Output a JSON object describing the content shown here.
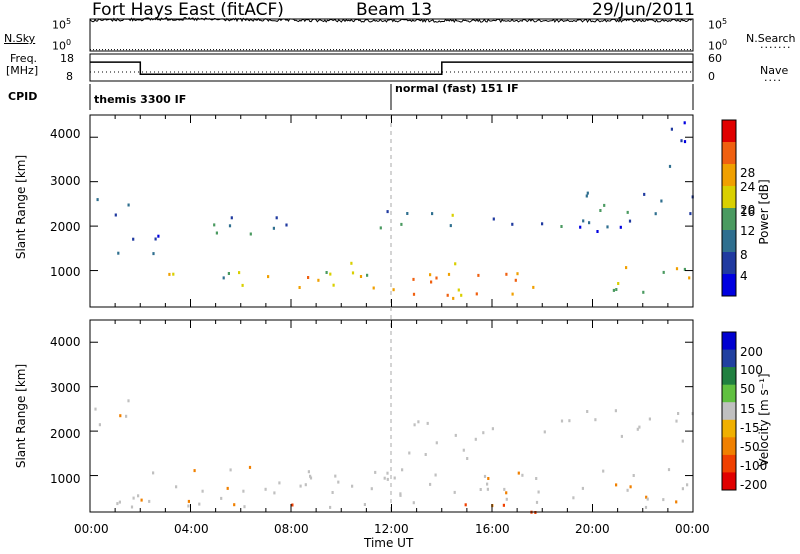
{
  "header": {
    "radar": "Fort Hays East (fitACF)",
    "beam": "Beam 13",
    "date": "29/Jun/2011"
  },
  "panels": {
    "nsky": {
      "left_label": "N.Sky",
      "right_label": "N.Search",
      "left_ticks": [
        "10^5",
        "10^0"
      ],
      "right_ticks": [
        "10^5",
        "10^0"
      ]
    },
    "freq": {
      "left_label_1": "Freq.",
      "left_label_2": "[MHz]",
      "right_label": "Nave",
      "left_ticks": [
        "18",
        "8"
      ],
      "right_ticks": [
        "60",
        "0"
      ]
    },
    "cpid": {
      "label": "CPID",
      "segments": [
        "themis 3300 IF",
        "normal (fast) 151 IF"
      ]
    },
    "power": {
      "ylabel": "Slant Range [km]",
      "yticks": [
        "4000",
        "3000",
        "2000",
        "1000"
      ],
      "colorbar_label": "Power [dB]",
      "colorbar_ticks": [
        "28",
        "24",
        "20",
        "16",
        "12",
        "8",
        "4"
      ]
    },
    "velocity": {
      "ylabel": "Slant Range [km]",
      "yticks": [
        "4000",
        "3000",
        "2000",
        "1000"
      ],
      "colorbar_label": "Velocity [m s⁻¹]",
      "colorbar_ticks": [
        "200",
        "100",
        "50",
        "15",
        "-15",
        "-50",
        "-100",
        "-200"
      ]
    }
  },
  "xaxis": {
    "label": "Time UT",
    "ticks": [
      "00:00",
      "04:00",
      "08:00",
      "12:00",
      "16:00",
      "20:00",
      "00:00"
    ]
  },
  "chart_data": [
    {
      "type": "line",
      "xlabel": "Time UT",
      "x_range_hours": [
        0,
        24
      ],
      "series": [
        {
          "name": "N.Sky",
          "style": "solid",
          "x": [
            0,
            2,
            3,
            4,
            5,
            6,
            8,
            12,
            16,
            20,
            24
          ],
          "values": [
            60000,
            90000,
            100000,
            95000,
            85000,
            75000,
            60000,
            55000,
            55000,
            55000,
            60000
          ]
        },
        {
          "name": "N.Search",
          "style": "dotted",
          "x": [
            0,
            4,
            12,
            20,
            24
          ],
          "values": [
            10,
            10,
            10,
            10,
            10
          ]
        }
      ],
      "ylim": [
        1,
        100000
      ],
      "yscale": "log"
    },
    {
      "type": "line",
      "series": [
        {
          "name": "Freq.",
          "style": "solid",
          "x": [
            0,
            2,
            2,
            14,
            14,
            24
          ],
          "values": [
            15,
            15,
            10.5,
            10.5,
            15,
            15
          ]
        },
        {
          "name": "Nave",
          "style": "dotted",
          "x": [
            0,
            24
          ],
          "values": [
            20,
            20
          ]
        }
      ],
      "ylim_left": [
        8,
        18
      ],
      "ylim_right": [
        0,
        60
      ]
    },
    {
      "type": "heatmap",
      "xlabel": "Time UT",
      "ylabel": "Slant Range [km]",
      "colorbar_label": "Power [dB]",
      "colorbar_range": [
        0,
        30
      ],
      "x_range_hours": [
        0,
        24
      ],
      "y_range_km": [
        180,
        4500
      ],
      "scatter_bands": [
        {
          "t0": 0,
          "t1": 1.5,
          "r0": 2100,
          "r1": 2700,
          "power": 8
        },
        {
          "t0": 0.5,
          "t1": 3,
          "r0": 1300,
          "r1": 1900,
          "power": 10
        },
        {
          "t0": 2,
          "t1": 6,
          "r0": 800,
          "r1": 1200,
          "power": 18
        },
        {
          "t0": 4,
          "t1": 8,
          "r0": 1800,
          "r1": 2400,
          "power": 12
        },
        {
          "t0": 6,
          "t1": 11.5,
          "r0": 500,
          "r1": 1200,
          "power": 22
        },
        {
          "t0": 11.5,
          "t1": 15,
          "r0": 1800,
          "r1": 2400,
          "power": 14
        },
        {
          "t0": 12,
          "t1": 19,
          "r0": 400,
          "r1": 1200,
          "power": 24
        },
        {
          "t0": 14,
          "t1": 22,
          "r0": 1900,
          "r1": 2300,
          "power": 10
        },
        {
          "t0": 18,
          "t1": 24,
          "r0": 2300,
          "r1": 2800,
          "power": 10
        },
        {
          "t0": 20,
          "t1": 24,
          "r0": 500,
          "r1": 1200,
          "power": 20
        },
        {
          "t0": 23,
          "t1": 24,
          "r0": 3000,
          "r1": 4500,
          "power": 8
        }
      ]
    },
    {
      "type": "heatmap",
      "xlabel": "Time UT",
      "ylabel": "Slant Range [km]",
      "colorbar_label": "Velocity [m s⁻¹]",
      "colorbar_range": [
        -200,
        200
      ],
      "x_range_hours": [
        0,
        24
      ],
      "y_range_km": [
        180,
        4500
      ],
      "scatter_bands": [
        {
          "t0": 0,
          "t1": 1.5,
          "r0": 2000,
          "r1": 2900,
          "velocity": 0
        },
        {
          "t0": 1,
          "t1": 12,
          "r0": 300,
          "r1": 1300,
          "velocity": 0
        },
        {
          "t0": 6,
          "t1": 8,
          "r0": 400,
          "r1": 900,
          "velocity": 30
        },
        {
          "t0": 6.5,
          "t1": 8.5,
          "r0": 180,
          "r1": 400,
          "velocity": -80
        },
        {
          "t0": 12,
          "t1": 24,
          "r0": 300,
          "r1": 1200,
          "velocity": 0
        },
        {
          "t0": 12,
          "t1": 19,
          "r0": 180,
          "r1": 400,
          "velocity": -60
        },
        {
          "t0": 12,
          "t1": 16,
          "r0": 1400,
          "r1": 2300,
          "velocity": 0
        },
        {
          "t0": 18,
          "t1": 24,
          "r0": 1800,
          "r1": 2500,
          "velocity": 0
        }
      ]
    }
  ]
}
